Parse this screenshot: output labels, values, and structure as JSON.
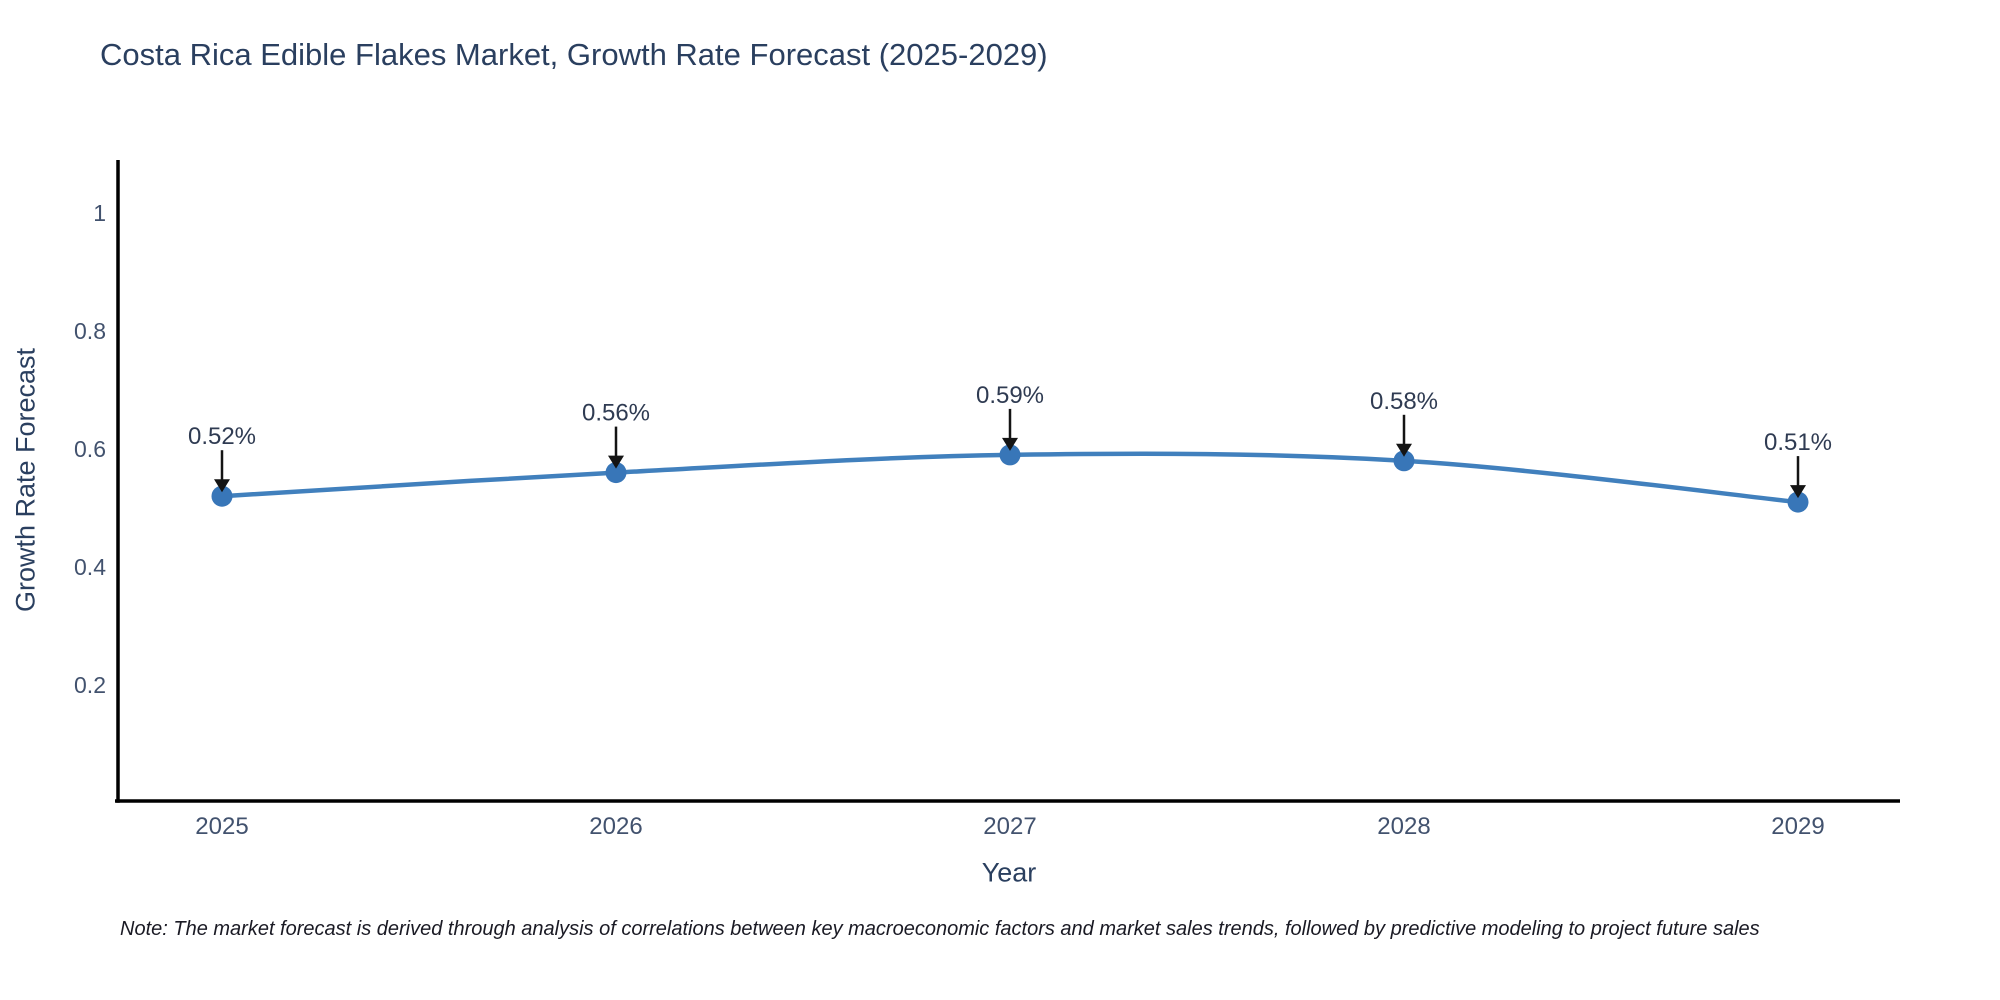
{
  "chart_data": {
    "type": "line",
    "title": "Costa Rica Edible Flakes Market, Growth Rate Forecast (2025-2029)",
    "xlabel": "Year",
    "ylabel": "Growth Rate Forecast",
    "categories": [
      "2025",
      "2026",
      "2027",
      "2028",
      "2029"
    ],
    "values": [
      0.52,
      0.56,
      0.59,
      0.58,
      0.51
    ],
    "point_labels": [
      "0.52%",
      "0.56%",
      "0.59%",
      "0.58%",
      "0.51%"
    ],
    "y_ticks": [
      0.2,
      0.4,
      0.6,
      0.8,
      1
    ],
    "ylim": [
      0,
      1.09
    ],
    "grid": false,
    "legend": "none",
    "line_shape": "spline",
    "colors": {
      "line": "#4180bd",
      "marker": "#3876b8",
      "arrow": "#141414",
      "axis_line": "#000000",
      "tick_text": "#42526e",
      "label_text": "#2f3b52"
    }
  },
  "note": {
    "text": "Note: The market forecast is derived through analysis of correlations between key macroeconomic factors and market sales trends, followed by predictive modeling to project future sales"
  }
}
